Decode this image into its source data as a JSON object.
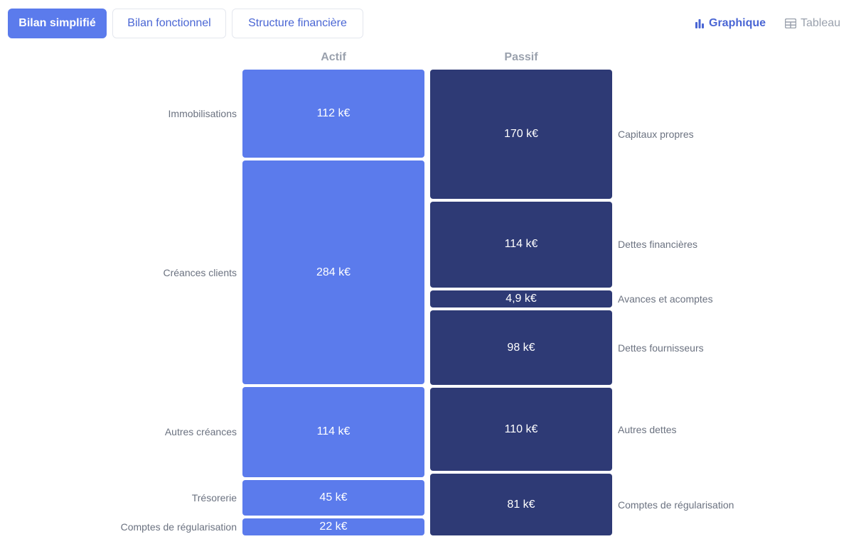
{
  "tabs": [
    {
      "label": "Bilan simplifié",
      "active": true
    },
    {
      "label": "Bilan fonctionnel",
      "active": false
    },
    {
      "label": "Structure financière",
      "active": false
    }
  ],
  "view_toggle": {
    "graphique": {
      "label": "Graphique",
      "icon": "bar-chart-icon",
      "active": true
    },
    "tableau": {
      "label": "Tableau",
      "icon": "table-icon",
      "active": false
    }
  },
  "colors": {
    "accent": "#5b7bec",
    "actif": "#5b7bec",
    "passif": "#2e3a75"
  },
  "chart_data": {
    "type": "bar",
    "columns": [
      "Actif",
      "Passif"
    ],
    "series": [
      {
        "name": "Actif",
        "items": [
          {
            "label": "Immobilisations",
            "value": 112,
            "value_label": "112 k€"
          },
          {
            "label": "Créances clients",
            "value": 284,
            "value_label": "284 k€"
          },
          {
            "label": "Autres créances",
            "value": 114,
            "value_label": "114 k€"
          },
          {
            "label": "Trésorerie",
            "value": 45,
            "value_label": "45 k€"
          },
          {
            "label": "Comptes de régularisation",
            "value": 22,
            "value_label": "22 k€"
          }
        ]
      },
      {
        "name": "Passif",
        "items": [
          {
            "label": "Capitaux propres",
            "value": 170,
            "value_label": "170 k€"
          },
          {
            "label": "Dettes financières",
            "value": 114,
            "value_label": "114 k€"
          },
          {
            "label": "Avances et acomptes",
            "value": 4.9,
            "value_label": "4,9 k€"
          },
          {
            "label": "Dettes fournisseurs",
            "value": 98,
            "value_label": "98 k€"
          },
          {
            "label": "Autres dettes",
            "value": 110,
            "value_label": "110 k€"
          },
          {
            "label": "Comptes de régularisation",
            "value": 81,
            "value_label": "81 k€"
          }
        ]
      }
    ]
  }
}
